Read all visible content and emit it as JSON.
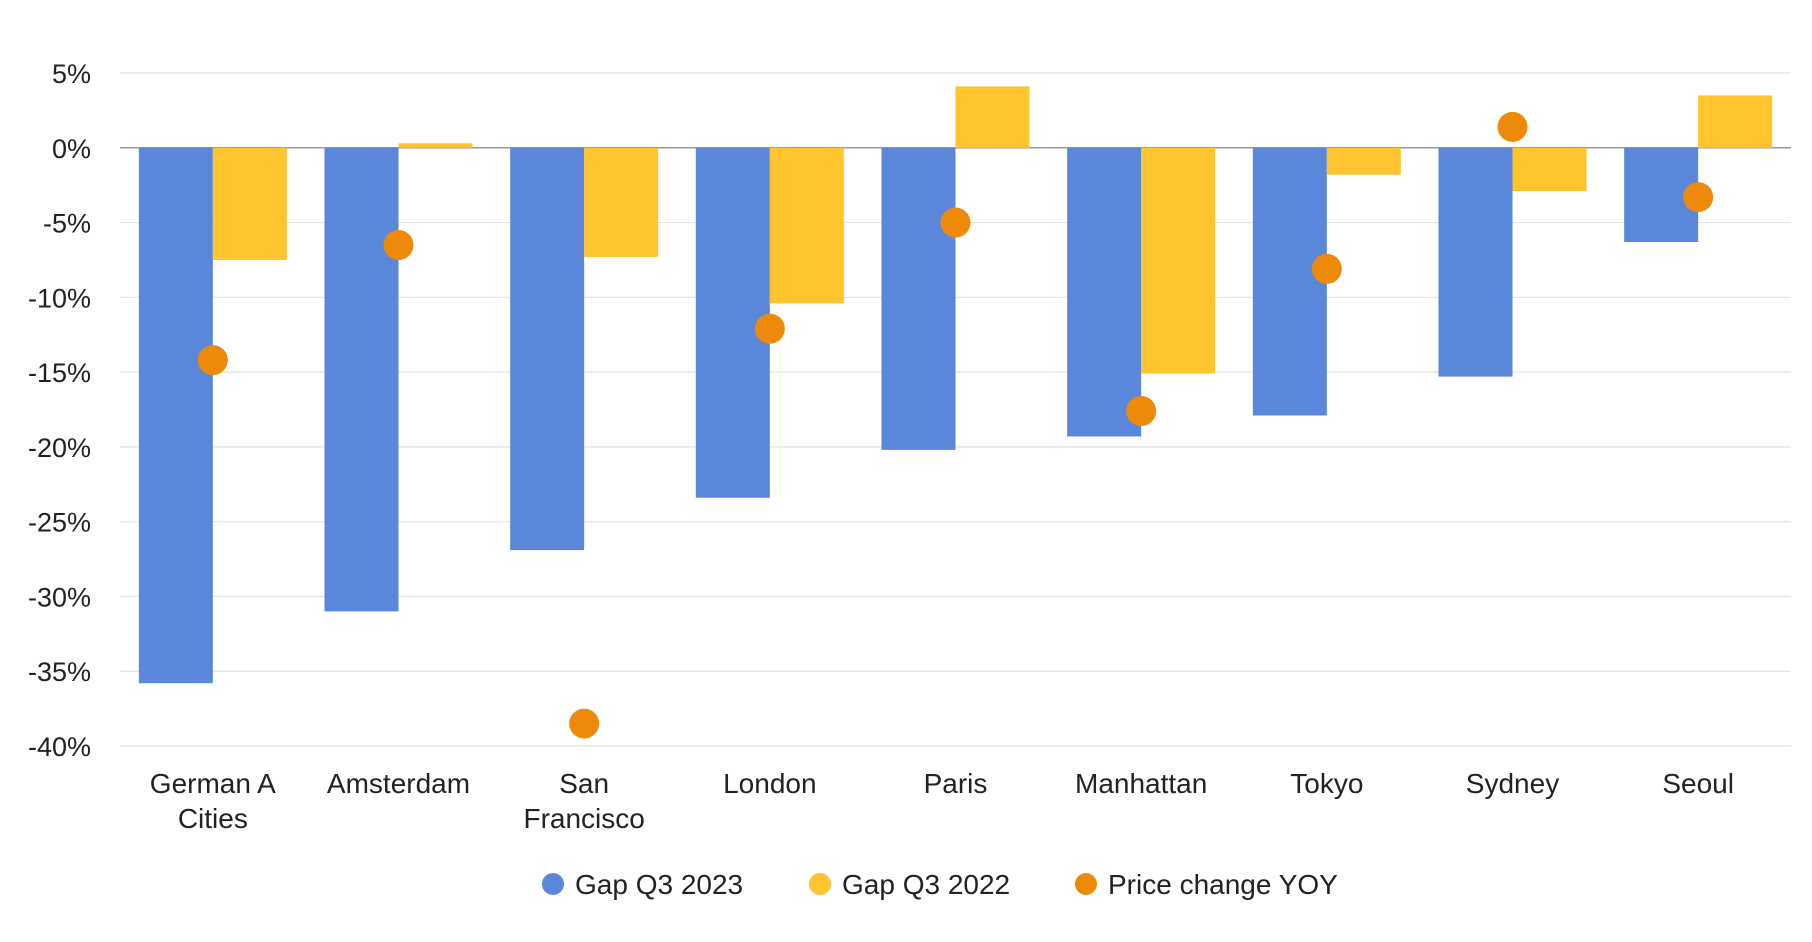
{
  "chart_data": {
    "type": "bar",
    "title": "",
    "xlabel": "",
    "ylabel": "",
    "ylim": [
      -40,
      5
    ],
    "yticks": [
      "5%",
      "0%",
      "-5%",
      "-10%",
      "-15%",
      "-20%",
      "-25%",
      "-30%",
      "-35%",
      "-40%"
    ],
    "ytick_values": [
      5,
      0,
      -5,
      -10,
      -15,
      -20,
      -25,
      -30,
      -35,
      -40
    ],
    "grid": true,
    "legend_position": "bottom",
    "categories": [
      [
        "German A",
        "Cities"
      ],
      [
        "Amsterdam"
      ],
      [
        "San",
        "Francisco"
      ],
      [
        "London"
      ],
      [
        "Paris"
      ],
      [
        "Manhattan"
      ],
      [
        "Tokyo"
      ],
      [
        "Sydney"
      ],
      [
        "Seoul"
      ]
    ],
    "series": [
      {
        "name": "Gap Q3 2023",
        "kind": "bar",
        "color": "#5B87DA",
        "values": [
          -35.8,
          -31.0,
          -26.9,
          -23.4,
          -20.2,
          -19.3,
          -17.9,
          -15.3,
          -6.3
        ]
      },
      {
        "name": "Gap Q3 2022",
        "kind": "bar",
        "color": "#FFC42E",
        "values": [
          -7.5,
          0.3,
          -7.3,
          -10.4,
          4.1,
          -15.1,
          -1.8,
          -2.9,
          3.5
        ]
      },
      {
        "name": "Price change YOY",
        "kind": "scatter",
        "color": "#EE8A0A",
        "values": [
          -14.2,
          -6.5,
          -38.5,
          -12.1,
          -5.0,
          -17.6,
          -8.1,
          1.4,
          -3.3
        ]
      }
    ]
  }
}
